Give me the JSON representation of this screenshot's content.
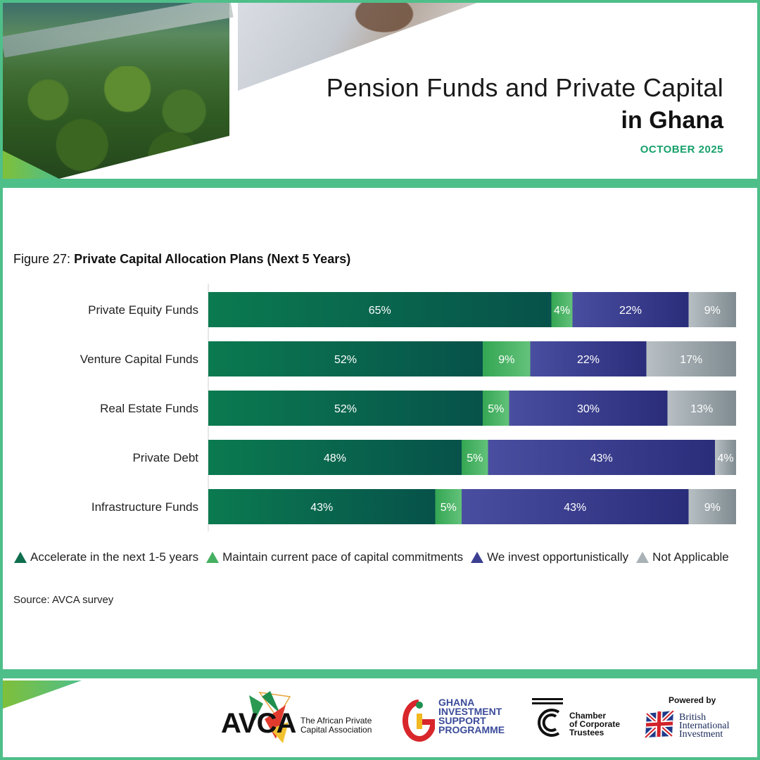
{
  "header": {
    "title_line1": "Pension Funds and Private Capital",
    "title_line2": "in Ghana",
    "date": "OCTOBER 2025"
  },
  "figure": {
    "number_label": "Figure 27:",
    "title": "Private Capital Allocation Plans (Next 5 Years)",
    "source": "Source: AVCA survey"
  },
  "colors": {
    "accent_green": "#4fbf8a",
    "accelerate": "#0e6e4e",
    "maintain": "#45b061",
    "opportunistic": "#3c3f91",
    "not_applicable": "#a9b2b6"
  },
  "chart_data": {
    "type": "bar",
    "orientation": "horizontal",
    "stacked": true,
    "xlim": [
      0,
      100
    ],
    "categories": [
      "Private Equity Funds",
      "Venture Capital Funds",
      "Real Estate Funds",
      "Private Debt",
      "Infrastructure Funds"
    ],
    "series": [
      {
        "name": "Accelerate in the next 1-5 years",
        "values": [
          65,
          52,
          52,
          48,
          43
        ],
        "labels": [
          "65%",
          "52%",
          "52%",
          "48%",
          "43%"
        ]
      },
      {
        "name": "Maintain current pace of capital commitments",
        "values": [
          4,
          9,
          5,
          5,
          5
        ],
        "labels": [
          "4%",
          "9%",
          "5%",
          "5%",
          "5%"
        ]
      },
      {
        "name": "We invest opportunistically",
        "values": [
          22,
          22,
          30,
          43,
          43
        ],
        "labels": [
          "22%",
          "22%",
          "30%",
          "43%",
          "43%"
        ]
      },
      {
        "name": "Not Applicable",
        "values": [
          9,
          17,
          13,
          4,
          9
        ],
        "labels": [
          "9%",
          "17%",
          "13%",
          "4%",
          "9%"
        ]
      }
    ],
    "legend_position": "bottom"
  },
  "footer": {
    "avca": {
      "wordmark": "AVCA",
      "line1": "The African Private",
      "line2": "Capital Association"
    },
    "gisp": {
      "line1": "GHANA",
      "line2": "INVESTMENT",
      "line3": "SUPPORT",
      "line4": "PROGRAMME"
    },
    "cct": {
      "line1": "Chamber",
      "line2": "of Corporate",
      "line3": "Trustees"
    },
    "bii": {
      "powered_by": "Powered by",
      "line1": "British",
      "line2": "International",
      "line3": "Investment"
    }
  }
}
